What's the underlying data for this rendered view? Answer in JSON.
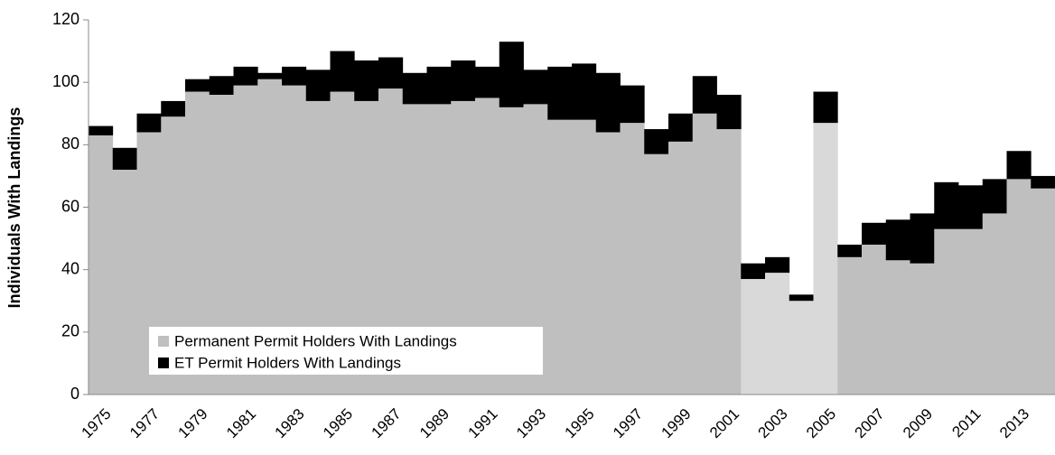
{
  "chart_data": {
    "type": "stacked_bar",
    "y_label": "Individuals With Landings",
    "categories": [
      "1975",
      null,
      "1977",
      null,
      "1979",
      null,
      "1981",
      null,
      "1983",
      null,
      "1985",
      null,
      "1987",
      null,
      "1989",
      null,
      "1991",
      null,
      "1993",
      null,
      "1995",
      null,
      "1997",
      null,
      "1999",
      null,
      "2001",
      null,
      "2003",
      null,
      "2005",
      null,
      "2007",
      null,
      "2009",
      null,
      "2011",
      null,
      "2013",
      null
    ],
    "series": [
      {
        "name": "Permanent Permit Holders With Landings",
        "color": "#bfbfbf",
        "colors": [
          "#bfbfbf",
          "#bfbfbf",
          "#bfbfbf",
          "#bfbfbf",
          "#bfbfbf",
          "#bfbfbf",
          "#bfbfbf",
          "#bfbfbf",
          "#bfbfbf",
          "#bfbfbf",
          "#bfbfbf",
          "#bfbfbf",
          "#bfbfbf",
          "#bfbfbf",
          "#bfbfbf",
          "#bfbfbf",
          "#bfbfbf",
          "#bfbfbf",
          "#bfbfbf",
          "#bfbfbf",
          "#bfbfbf",
          "#bfbfbf",
          "#bfbfbf",
          "#bfbfbf",
          "#bfbfbf",
          "#bfbfbf",
          "#bfbfbf",
          "#d9d9d9",
          "#d9d9d9",
          "#d9d9d9",
          "#d9d9d9",
          "#bfbfbf",
          "#bfbfbf",
          "#bfbfbf",
          "#bfbfbf",
          "#bfbfbf",
          "#bfbfbf",
          "#bfbfbf",
          "#bfbfbf",
          "#bfbfbf"
        ],
        "values": [
          83,
          72,
          84,
          89,
          97,
          96,
          99,
          101,
          99,
          94,
          97,
          94,
          98,
          93,
          93,
          94,
          95,
          92,
          93,
          88,
          88,
          84,
          87,
          77,
          81,
          90,
          85,
          37,
          39,
          30,
          87,
          44,
          48,
          43,
          42,
          53,
          53,
          58,
          69,
          66
        ]
      },
      {
        "name": "ET Permit Holders With Landings",
        "color": "#000000",
        "values": [
          3,
          7,
          6,
          5,
          4,
          6,
          6,
          2,
          6,
          10,
          13,
          13,
          10,
          10,
          12,
          13,
          10,
          21,
          11,
          17,
          18,
          19,
          12,
          8,
          9,
          12,
          11,
          5,
          5,
          2,
          10,
          4,
          7,
          13,
          16,
          15,
          14,
          11,
          9,
          4
        ]
      }
    ],
    "ylim": [
      0,
      120
    ],
    "yticks": [
      0,
      20,
      40,
      60,
      80,
      100,
      120
    ],
    "grid": false,
    "legend": "lower-left"
  }
}
